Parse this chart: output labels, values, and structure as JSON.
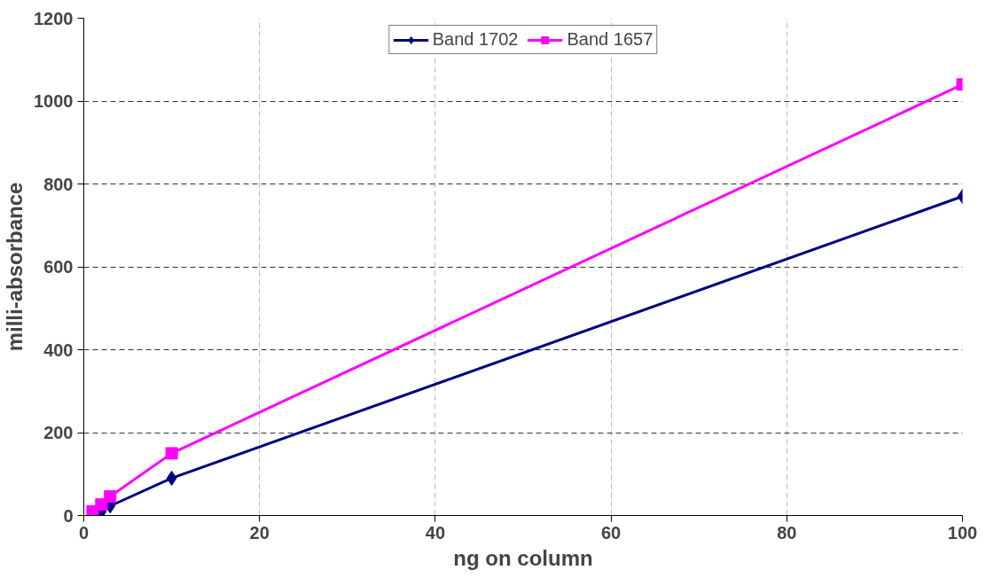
{
  "chart_data": {
    "type": "line",
    "xlabel": "ng on column",
    "ylabel": "milli-absorbance",
    "x": [
      1,
      2,
      3,
      10,
      100
    ],
    "series": [
      {
        "name": "Band 1702",
        "color": "#000080",
        "marker": "diamond",
        "values": [
          2,
          9,
          23,
          90,
          770
        ]
      },
      {
        "name": "Band 1657",
        "color": "#ff00ff",
        "marker": "square",
        "values": [
          10,
          27,
          46,
          150,
          1040
        ]
      }
    ],
    "xlim": [
      0,
      100
    ],
    "xticks": [
      0,
      20,
      40,
      60,
      80,
      100
    ],
    "ylim": [
      0,
      1200
    ],
    "yticks": [
      0,
      200,
      400,
      600,
      800,
      1000,
      1200
    ],
    "grid": true,
    "legend": "top",
    "line_style": "solid"
  }
}
